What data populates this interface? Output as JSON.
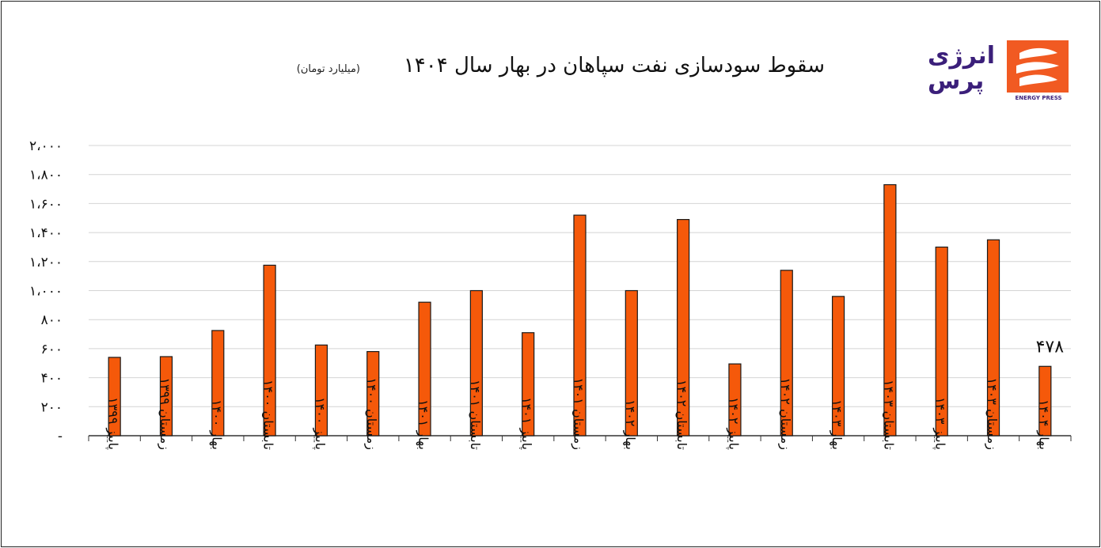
{
  "chart_data": {
    "type": "bar",
    "title": "سقوط سودسازی نفت سپاهان در بهار سال ۱۴۰۴",
    "subtitle": "(میلیارد تومان)",
    "categories": [
      "پاییز ۱۳۹۹",
      "زمستان ۱۳۹۹",
      "بهار ۱۴۰۰",
      "تابستان ۱۴۰۰",
      "پاییز ۱۴۰۰",
      "زمستان ۱۴۰۰",
      "بهار ۱۴۰۱",
      "تابستان ۱۴۰۱",
      "پاییز ۱۴۰۱",
      "زمستان ۱۴۰۱",
      "بهار ۱۴۰۲",
      "تابستان ۱۴۰۲",
      "پاییز ۱۴۰۲",
      "زمستان ۱۴۰۲",
      "بهار ۱۴۰۳",
      "تابستان ۱۴۰۳",
      "پاییز ۱۴۰۳",
      "زمستان ۱۴۰۳",
      "بهار ۱۴۰۴"
    ],
    "values": [
      540,
      545,
      725,
      1175,
      625,
      580,
      920,
      1000,
      710,
      1520,
      1000,
      1490,
      495,
      1140,
      960,
      1730,
      1300,
      1350,
      478
    ],
    "data_labels": [
      {
        "index": 18,
        "text": "۴۷۸"
      }
    ],
    "y_ticks": [
      "-",
      "۲۰۰",
      "۴۰۰",
      "۶۰۰",
      "۸۰۰",
      "۱،۰۰۰",
      "۱،۲۰۰",
      "۱،۴۰۰",
      "۱،۶۰۰",
      "۱،۸۰۰",
      "۲،۰۰۰"
    ],
    "ylim": [
      0,
      2000
    ],
    "grid": true,
    "legend": "none",
    "bar_color": "#f5590a"
  },
  "logo": {
    "line1": "انرژی",
    "line2": "پرس",
    "caption": "ENERGY PRESS",
    "brand_color": "#3b1f7a",
    "accent_color": "#f15a22"
  }
}
